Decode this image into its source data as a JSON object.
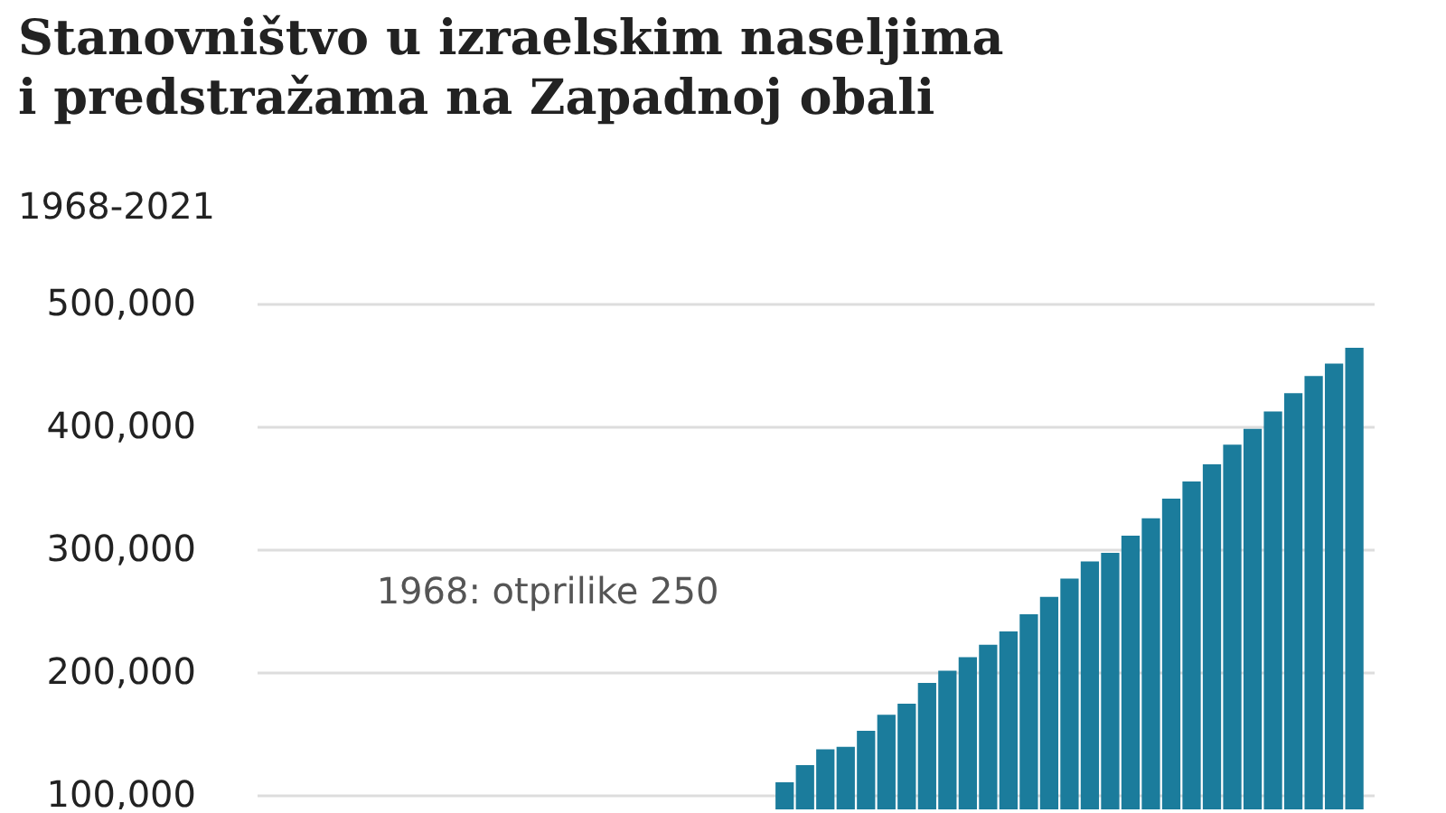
{
  "chart_data": {
    "type": "bar",
    "title": "Stanovništvo u izraelskim naseljima i predstražama na Zapadnoj obali",
    "subtitle": "1968-2021",
    "categories": [
      null,
      null,
      null,
      null,
      null,
      null,
      null,
      null,
      null,
      null,
      null,
      null,
      null,
      null,
      null,
      null,
      null,
      null,
      null,
      null,
      null,
      null,
      null,
      null,
      null,
      null,
      null,
      null,
      null,
      null,
      null,
      null,
      null,
      null,
      null,
      null,
      null,
      null,
      null,
      null,
      null,
      null,
      null,
      null,
      null,
      null,
      null,
      null,
      null,
      null,
      null,
      null,
      null,
      null
    ],
    "values": [
      null,
      null,
      null,
      null,
      null,
      null,
      null,
      null,
      null,
      null,
      null,
      null,
      null,
      null,
      null,
      null,
      null,
      null,
      null,
      null,
      null,
      null,
      null,
      null,
      null,
      110000,
      124000,
      137000,
      139000,
      152000,
      165000,
      174000,
      191000,
      201000,
      212000,
      222000,
      233000,
      247000,
      261000,
      276000,
      290000,
      297000,
      311000,
      325000,
      341000,
      355000,
      369000,
      385000,
      398000,
      412000,
      427000,
      441000,
      451000,
      464000
    ],
    "color": "#1b7c9c",
    "ylim": [
      88000,
      500000
    ],
    "yticks": [
      {
        "value": 100000,
        "label": "100,000"
      },
      {
        "value": 200000,
        "label": "200,000"
      },
      {
        "value": 300000,
        "label": "300,000"
      },
      {
        "value": 400000,
        "label": "400,000"
      },
      {
        "value": 500000,
        "label": "500,000"
      }
    ],
    "grid": "y",
    "tick_labels": "y",
    "annotations": [
      "1968: otprilike 250"
    ]
  }
}
